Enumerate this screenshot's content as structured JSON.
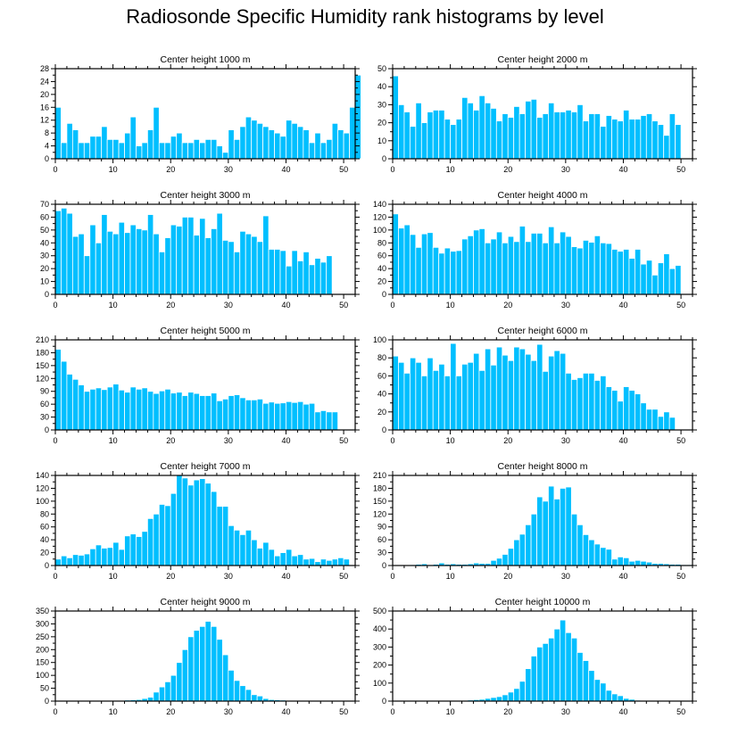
{
  "title": "Radiosonde Specific Humidity rank histograms by level",
  "colors": {
    "bar": "#00BFFF",
    "bar_edge": "#ffffff",
    "axis": "#000000"
  },
  "chart_data": [
    {
      "type": "bar",
      "title": "Center height 1000 m",
      "xlim": [
        0,
        52
      ],
      "ylim": [
        0,
        28
      ],
      "xticks": [
        0,
        10,
        20,
        30,
        40,
        50
      ],
      "yticks": [
        0,
        4,
        8,
        12,
        16,
        20,
        24,
        28
      ],
      "values": [
        16,
        5,
        11,
        9,
        5,
        5,
        7,
        7,
        10,
        6,
        6,
        5,
        8,
        13,
        4,
        5,
        9,
        16,
        5,
        5,
        7,
        8,
        5,
        5,
        6,
        5,
        6,
        6,
        4,
        2,
        9,
        6,
        10,
        13,
        12,
        11,
        10,
        9,
        8,
        7,
        12,
        11,
        10,
        9,
        5,
        8,
        5,
        6,
        11,
        9,
        8,
        16,
        26
      ]
    },
    {
      "type": "bar",
      "title": "Center height 2000 m",
      "xlim": [
        0,
        52
      ],
      "ylim": [
        0,
        50
      ],
      "xticks": [
        0,
        10,
        20,
        30,
        40,
        50
      ],
      "yticks": [
        0,
        10,
        20,
        30,
        40,
        50
      ],
      "values": [
        46,
        30,
        26,
        18,
        31,
        20,
        26,
        27,
        27,
        22,
        19,
        22,
        34,
        31,
        27,
        35,
        31,
        28,
        21,
        25,
        23,
        29,
        25,
        32,
        33,
        23,
        25,
        31,
        26,
        26,
        27,
        26,
        30,
        21,
        25,
        25,
        18,
        24,
        22,
        21,
        27,
        22,
        22,
        24,
        25,
        21,
        19,
        13,
        25,
        19
      ]
    },
    {
      "type": "bar",
      "title": "Center height 3000 m",
      "xlim": [
        0,
        52
      ],
      "ylim": [
        0,
        70
      ],
      "xticks": [
        0,
        10,
        20,
        30,
        40,
        50
      ],
      "yticks": [
        0,
        10,
        20,
        30,
        40,
        50,
        60,
        70
      ],
      "values": [
        65,
        67,
        63,
        45,
        47,
        30,
        54,
        40,
        62,
        49,
        47,
        56,
        48,
        54,
        51,
        50,
        62,
        47,
        33,
        44,
        54,
        53,
        60,
        60,
        46,
        59,
        44,
        51,
        63,
        42,
        41,
        33,
        49,
        47,
        45,
        41,
        61,
        35,
        35,
        34,
        22,
        34,
        26,
        33,
        23,
        28,
        25,
        30
      ]
    },
    {
      "type": "bar",
      "title": "Center height 4000 m",
      "xlim": [
        0,
        52
      ],
      "ylim": [
        0,
        140
      ],
      "xticks": [
        0,
        10,
        20,
        30,
        40,
        50
      ],
      "yticks": [
        0,
        20,
        40,
        60,
        80,
        100,
        120,
        140
      ],
      "values": [
        125,
        103,
        108,
        93,
        73,
        94,
        96,
        73,
        64,
        72,
        67,
        68,
        86,
        91,
        100,
        102,
        80,
        86,
        97,
        80,
        90,
        82,
        106,
        82,
        95,
        95,
        80,
        105,
        80,
        97,
        90,
        74,
        72,
        84,
        81,
        91,
        80,
        79,
        70,
        67,
        70,
        56,
        70,
        47,
        53,
        30,
        49,
        63,
        40,
        45
      ]
    },
    {
      "type": "bar",
      "title": "Center height 5000 m",
      "xlim": [
        0,
        52
      ],
      "ylim": [
        0,
        210
      ],
      "xticks": [
        0,
        10,
        20,
        30,
        40,
        50
      ],
      "yticks": [
        0,
        30,
        60,
        90,
        120,
        150,
        180,
        210
      ],
      "values": [
        188,
        160,
        130,
        118,
        105,
        90,
        95,
        98,
        94,
        100,
        107,
        93,
        88,
        100,
        95,
        98,
        90,
        85,
        91,
        95,
        86,
        88,
        80,
        88,
        85,
        80,
        80,
        86,
        68,
        72,
        80,
        82,
        75,
        70,
        70,
        72,
        62,
        65,
        62,
        63,
        66,
        64,
        66,
        60,
        62,
        42,
        45,
        42,
        42
      ]
    },
    {
      "type": "bar",
      "title": "Center height 6000 m",
      "xlim": [
        0,
        52
      ],
      "ylim": [
        0,
        100
      ],
      "xticks": [
        0,
        10,
        20,
        30,
        40,
        50
      ],
      "yticks": [
        0,
        20,
        40,
        60,
        80,
        100
      ],
      "values": [
        82,
        75,
        63,
        80,
        75,
        60,
        80,
        66,
        73,
        60,
        96,
        60,
        73,
        75,
        85,
        66,
        90,
        72,
        92,
        83,
        77,
        92,
        90,
        84,
        77,
        95,
        65,
        82,
        88,
        85,
        63,
        56,
        58,
        63,
        63,
        55,
        60,
        48,
        44,
        32,
        48,
        44,
        40,
        30,
        23,
        23,
        15,
        20,
        14
      ]
    },
    {
      "type": "bar",
      "title": "Center height 7000 m",
      "xlim": [
        0,
        52
      ],
      "ylim": [
        0,
        140
      ],
      "xticks": [
        0,
        10,
        20,
        30,
        40,
        50
      ],
      "yticks": [
        0,
        20,
        40,
        60,
        80,
        100,
        120,
        140
      ],
      "values": [
        10,
        15,
        12,
        17,
        16,
        18,
        26,
        32,
        27,
        28,
        36,
        25,
        46,
        49,
        45,
        53,
        73,
        80,
        95,
        93,
        112,
        140,
        136,
        125,
        133,
        135,
        128,
        115,
        92,
        92,
        62,
        55,
        48,
        55,
        40,
        27,
        36,
        25,
        15,
        20,
        25,
        15,
        17,
        10,
        11,
        6,
        10,
        8,
        10,
        12,
        10
      ]
    },
    {
      "type": "bar",
      "title": "Center height 8000 m",
      "xlim": [
        0,
        52
      ],
      "ylim": [
        0,
        210
      ],
      "xticks": [
        0,
        10,
        20,
        30,
        40,
        50
      ],
      "yticks": [
        0,
        30,
        60,
        90,
        120,
        150,
        180,
        210
      ],
      "values": [
        0,
        0,
        0,
        2,
        3,
        4,
        2,
        3,
        6,
        3,
        4,
        3,
        3,
        4,
        6,
        5,
        5,
        12,
        17,
        26,
        40,
        60,
        73,
        95,
        120,
        160,
        150,
        185,
        155,
        180,
        183,
        120,
        95,
        72,
        60,
        50,
        42,
        38,
        15,
        20,
        18,
        10,
        12,
        10,
        8,
        5,
        5,
        4,
        3,
        3,
        2,
        2,
        1
      ]
    },
    {
      "type": "bar",
      "title": "Center height 9000 m",
      "xlim": [
        0,
        52
      ],
      "ylim": [
        0,
        350
      ],
      "xticks": [
        0,
        10,
        20,
        30,
        40,
        50
      ],
      "yticks": [
        0,
        50,
        100,
        150,
        200,
        250,
        300,
        350
      ],
      "values": [
        0,
        0,
        1,
        1,
        1,
        1,
        1,
        2,
        2,
        2,
        2,
        3,
        4,
        5,
        6,
        10,
        15,
        35,
        55,
        75,
        100,
        150,
        200,
        250,
        275,
        290,
        310,
        290,
        240,
        180,
        120,
        80,
        60,
        45,
        25,
        20,
        10,
        6,
        5,
        4,
        3,
        3,
        2,
        2,
        2,
        1,
        1,
        1,
        1,
        1,
        1
      ]
    },
    {
      "type": "bar",
      "title": "Center height 10000 m",
      "xlim": [
        0,
        52
      ],
      "ylim": [
        0,
        500
      ],
      "xticks": [
        0,
        10,
        20,
        30,
        40,
        50
      ],
      "yticks": [
        0,
        100,
        200,
        300,
        400,
        500
      ],
      "values": [
        0,
        0,
        0,
        1,
        1,
        1,
        1,
        2,
        2,
        2,
        3,
        3,
        4,
        6,
        8,
        10,
        15,
        20,
        25,
        35,
        50,
        70,
        110,
        180,
        250,
        300,
        320,
        350,
        400,
        450,
        380,
        350,
        270,
        225,
        170,
        120,
        100,
        60,
        40,
        30,
        15,
        10,
        5,
        4,
        3,
        2,
        1,
        1,
        1,
        1
      ]
    }
  ]
}
